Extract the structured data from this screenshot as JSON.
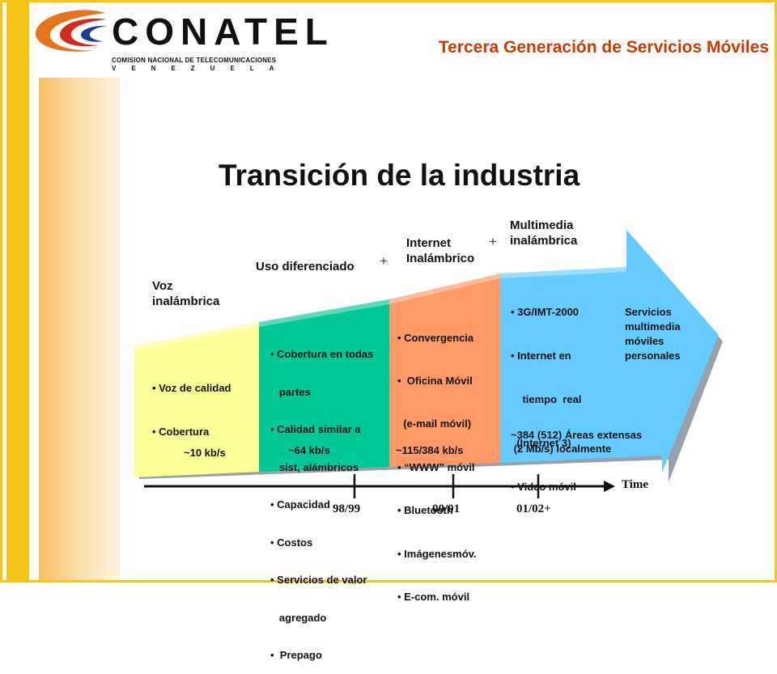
{
  "header": {
    "logo_text": "CONATEL",
    "logo_subtitle": "COMISION NACIONAL DE TELECOMUNICACIONES",
    "logo_country": "VENEZUELA",
    "slide_title": "Tercera Generación de Servicios Móviles"
  },
  "diagram": {
    "title": "Transición de la industria",
    "stages": [
      {
        "label": "Voz\ninalámbrica",
        "color": "#ffff99",
        "bullets": [
          "• Voz de calidad",
          "• Cobertura"
        ],
        "rate": "~10 kb/s"
      },
      {
        "label": "Uso diferenciado",
        "plus": "+",
        "color": "#00c896",
        "bullets": [
          "• Cobertura en todas",
          "   partes",
          "• Calidad similar a",
          "   sist, alámbricos",
          "• Capacidad",
          "• Costos",
          "• Servicios de valor",
          "   agregado",
          "•  Prepago"
        ],
        "rate": "~64 kb/s"
      },
      {
        "label": "Internet\nInalámbrico",
        "plus": "+",
        "color": "#ff9966",
        "bullets": [
          "• Convergencia",
          "•  Oficina Móvil",
          "  (e-mail móvil)",
          "• “WWW” móvil",
          "• Bluetooth",
          "• Imágenesmóv.",
          "• E-com. móvil"
        ],
        "rate": "~115/384 kb/s"
      },
      {
        "label": "Multimedia\ninalámbrica",
        "color": "#66ccff",
        "bullets": [
          "• 3G/IMT-2000",
          "• Internet en",
          "    tiempo  real",
          "  (Internet 3)",
          "• Video móvil"
        ],
        "side_text": "Servicios\nmultimedia\nmóviles\npersonales",
        "rate": "~384 (512) Áreas extensas\n (2 Mb/s) localmente"
      }
    ],
    "timeline": {
      "axis_label": "Time",
      "ticks": [
        "98/99",
        "00/01",
        "01/02+"
      ]
    }
  }
}
